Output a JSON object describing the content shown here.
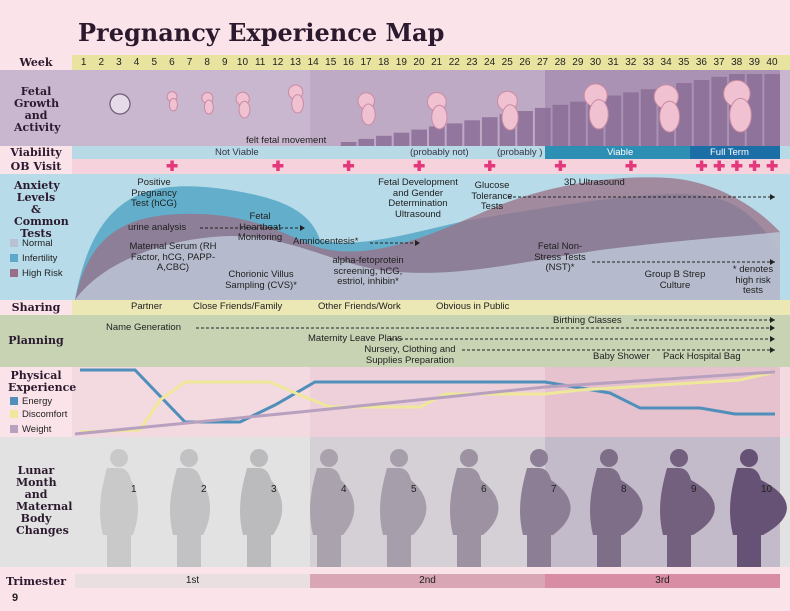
{
  "title": "Pregnancy Experience Map",
  "page_number": "9",
  "rows": {
    "week": "Week",
    "fetal": "Fetal Growth and Activity",
    "viability": "Viability",
    "ob": "OB Visit",
    "anxiety": "Anxiety Levels & Common Tests",
    "sharing": "Sharing",
    "planning": "Planning",
    "physical": "Physical Experience",
    "lunar": "Lunar Month and Maternal Body Changes",
    "trimester": "Trimester"
  },
  "weeks": [
    "1",
    "2",
    "3",
    "4",
    "5",
    "6",
    "7",
    "8",
    "9",
    "10",
    "11",
    "12",
    "13",
    "14",
    "15",
    "16",
    "17",
    "18",
    "19",
    "20",
    "21",
    "22",
    "23",
    "24",
    "25",
    "26",
    "27",
    "28",
    "29",
    "30",
    "31",
    "32",
    "33",
    "34",
    "35",
    "36",
    "37",
    "38",
    "39",
    "40"
  ],
  "fetal_growth": {
    "annotation": "felt fetal movement"
  },
  "viability": [
    {
      "label": "Not Viable"
    },
    {
      "label": "(probably not)"
    },
    {
      "label": "(probably )"
    },
    {
      "label": "Viable"
    },
    {
      "label": "Full Term"
    }
  ],
  "ob_visit_weeks": [
    6,
    12,
    16,
    20,
    24,
    28,
    32,
    36,
    37,
    38,
    39,
    40
  ],
  "anxiety": {
    "legend": [
      {
        "label": "Normal",
        "color": "#b9c2d2"
      },
      {
        "label": "Infertility",
        "color": "#5aa9c8"
      },
      {
        "label": "High Risk",
        "color": "#9a6f86"
      }
    ],
    "tests": [
      "Positive Pregnancy Test (hCG)",
      "urine analysis",
      "Fetal Heartbeat Monitoring",
      "Maternal Serum (RH Factor, hCG, PAPP-A,CBC)",
      "Chorionic Villus Sampling (CVS)*",
      "Amniocentesis*",
      "alpha-fetoprotein screening, hCG, estriol, inhibin*",
      "Fetal Development and Gender Determination Ultrasound",
      "Glucose Tolerance Tests",
      "3D Ultrasound",
      "Fetal Non-Stress Tests (NST)*",
      "Group B Strep Culture",
      "* denotes high risk tests"
    ]
  },
  "sharing": [
    "Partner",
    "Close Friends/Family",
    "Other Friends/Work",
    "Obvious in Public"
  ],
  "planning": [
    "Name Generation",
    "Maternity Leave Plans",
    "Nursery, Clothing and Supplies Preparation",
    "Birthing Classes",
    "Baby Shower",
    "Pack Hospital Bag"
  ],
  "physical": {
    "legend": [
      {
        "label": "Energy",
        "color": "#4f8fba"
      },
      {
        "label": "Discomfort",
        "color": "#efe79a"
      },
      {
        "label": "Weight",
        "color": "#b7a1bf"
      }
    ]
  },
  "lunar_months": [
    "1",
    "2",
    "3",
    "4",
    "5",
    "6",
    "7",
    "8",
    "9",
    "10"
  ],
  "trimesters": [
    "1st",
    "2nd",
    "3rd"
  ]
}
